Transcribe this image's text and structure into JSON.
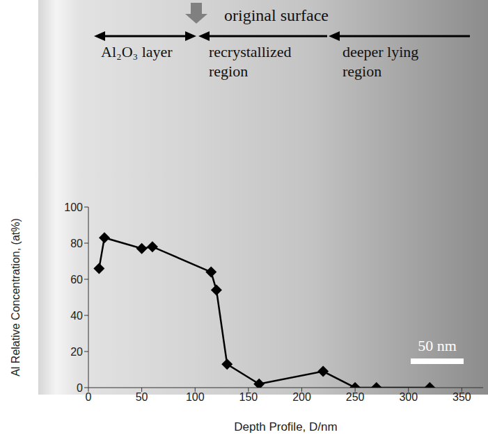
{
  "chart_data": {
    "type": "line",
    "x_label": "Depth Profile, D/nm",
    "y_label": "Al Relative Concentration, (at%)",
    "x": [
      10,
      15,
      50,
      60,
      115,
      120,
      130,
      160,
      220,
      250,
      270,
      320
    ],
    "values": [
      66,
      83,
      77,
      78,
      64,
      54,
      13,
      2,
      9,
      0,
      0,
      0
    ],
    "color": "#000000",
    "marker": "diamond",
    "xlim": [
      0,
      370
    ],
    "xticks": [
      0,
      50,
      100,
      150,
      200,
      250,
      300,
      350
    ],
    "ylim": [
      0,
      100
    ],
    "yticks": [
      0,
      20,
      40,
      60,
      80,
      100
    ],
    "grid": false,
    "annotations": {
      "original_surface": "original surface",
      "regions": [
        "Al₂O₃ layer",
        "recrystallized region",
        "deeper lying region"
      ],
      "scale_bar": "50 nm"
    }
  }
}
